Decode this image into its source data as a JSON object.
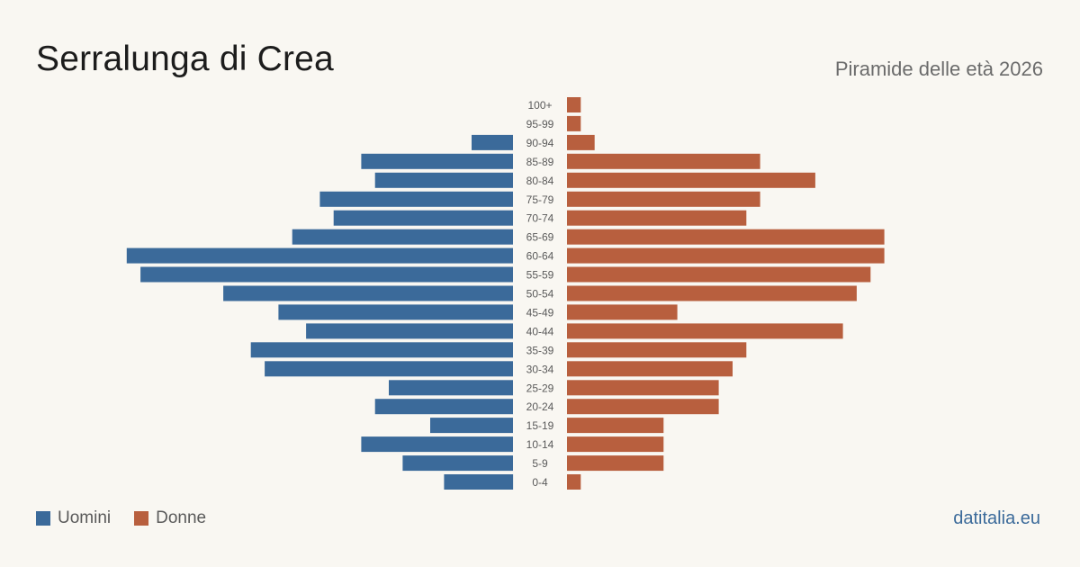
{
  "header": {
    "title": "Serralunga di Crea",
    "subtitle": "Piramide delle età 2026"
  },
  "legend": {
    "men_label": "Uomini",
    "women_label": "Donne"
  },
  "footer": {
    "source": "datitalia.eu"
  },
  "colors": {
    "men": "#3b6a9a",
    "women": "#b85f3e",
    "background": "#f9f7f2"
  },
  "chart_data": {
    "type": "bar",
    "orientation": "horizontal-pyramid",
    "categories": [
      "100+",
      "95-99",
      "90-94",
      "85-89",
      "80-84",
      "75-79",
      "70-74",
      "65-69",
      "60-64",
      "55-59",
      "50-54",
      "45-49",
      "40-44",
      "35-39",
      "30-34",
      "25-29",
      "20-24",
      "15-19",
      "10-14",
      "5-9",
      "0-4"
    ],
    "series": [
      {
        "name": "Uomini",
        "values": [
          0,
          0,
          3,
          11,
          10,
          14,
          13,
          16,
          28,
          27,
          21,
          17,
          15,
          19,
          18,
          9,
          10,
          6,
          11,
          8,
          5
        ]
      },
      {
        "name": "Donne",
        "values": [
          1,
          1,
          2,
          14,
          18,
          14,
          13,
          23,
          23,
          22,
          21,
          8,
          20,
          13,
          12,
          11,
          11,
          7,
          7,
          7,
          1
        ]
      }
    ],
    "legend_position": "bottom-left",
    "grid": false
  }
}
